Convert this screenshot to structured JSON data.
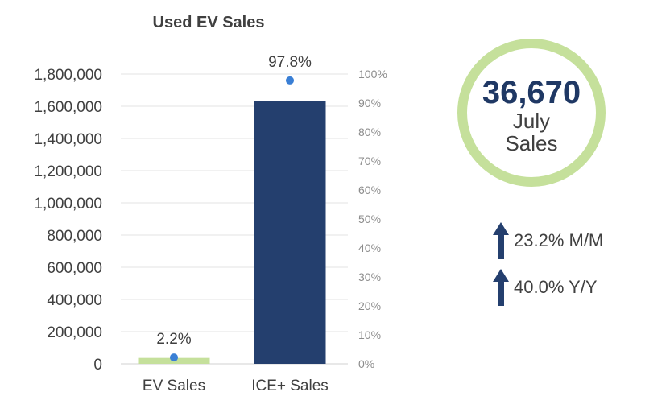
{
  "chart_data": {
    "type": "bar",
    "title": "Used EV Sales",
    "categories": [
      "EV Sales",
      "ICE+ Sales"
    ],
    "series": [
      {
        "name": "Sales",
        "axis": "left",
        "values": [
          36670,
          1630000
        ],
        "colors": [
          "#c5e09b",
          "#243f6e"
        ]
      },
      {
        "name": "Share",
        "axis": "right",
        "type": "scatter",
        "values": [
          2.2,
          97.8
        ],
        "labels": [
          "2.2%",
          "97.8%"
        ],
        "color": "#3a7fd5"
      }
    ],
    "ylim": [
      0,
      1800000
    ],
    "yticks": [
      "0",
      "200,000",
      "400,000",
      "600,000",
      "800,000",
      "1,000,000",
      "1,200,000",
      "1,400,000",
      "1,600,000",
      "1,800,000"
    ],
    "y2lim": [
      0,
      100
    ],
    "y2ticks": [
      "0%",
      "10%",
      "20%",
      "30%",
      "40%",
      "50%",
      "60%",
      "70%",
      "80%",
      "90%",
      "100%"
    ],
    "grid": true
  },
  "kpi": {
    "value": "36,670",
    "label_line1": "July",
    "label_line2": "Sales"
  },
  "changes": [
    {
      "icon": "arrow-up",
      "text": "23.2% M/M"
    },
    {
      "icon": "arrow-up",
      "text": "40.0% Y/Y"
    }
  ],
  "colors": {
    "navy": "#1f3864",
    "green": "#c5e09b",
    "dot": "#3a7fd5"
  }
}
